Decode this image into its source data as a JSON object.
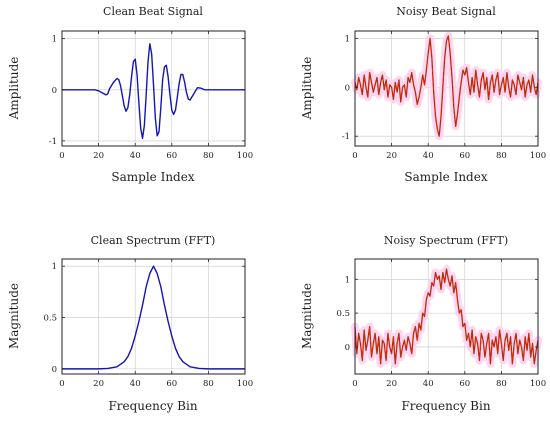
{
  "chart_data": [
    {
      "id": "clean-beat",
      "type": "line",
      "title": "Clean Beat Signal",
      "xlabel": "Sample Index",
      "ylabel": "Amplitude",
      "xlim": [
        0,
        100
      ],
      "ylim": [
        -1.1,
        1.15
      ],
      "xticks": [
        0,
        20,
        40,
        60,
        80,
        100
      ],
      "yticks": [
        -1,
        0,
        1
      ],
      "grid": true,
      "colors": {
        "line": "#1515b5",
        "halo": "#ffffff"
      },
      "series": [
        {
          "x": [
            0,
            5,
            10,
            15,
            18,
            20,
            22,
            24,
            25,
            26,
            28,
            30,
            31,
            32,
            33,
            34,
            35,
            36,
            37,
            38,
            39,
            40,
            41,
            42,
            43,
            44,
            45,
            46,
            47,
            48,
            49,
            50,
            51,
            52,
            53,
            54,
            55,
            56,
            57,
            58,
            59,
            60,
            61,
            62,
            63,
            64,
            65,
            66,
            67,
            68,
            69,
            70,
            72,
            74,
            76,
            78,
            80,
            85,
            90,
            95,
            100
          ],
          "values": [
            0,
            0,
            0,
            0,
            0,
            -0.02,
            -0.06,
            -0.1,
            -0.08,
            0.02,
            0.14,
            0.22,
            0.2,
            0.08,
            -0.12,
            -0.32,
            -0.42,
            -0.35,
            -0.1,
            0.25,
            0.55,
            0.6,
            0.3,
            -0.25,
            -0.75,
            -0.95,
            -0.7,
            -0.1,
            0.55,
            0.9,
            0.7,
            0.1,
            -0.55,
            -0.9,
            -0.82,
            -0.35,
            0.2,
            0.45,
            0.48,
            0.25,
            -0.1,
            -0.4,
            -0.48,
            -0.4,
            -0.15,
            0.12,
            0.3,
            0.3,
            0.15,
            -0.05,
            -0.18,
            -0.2,
            -0.08,
            0.04,
            0.03,
            0,
            0,
            0,
            0,
            0,
            0
          ]
        }
      ]
    },
    {
      "id": "noisy-beat",
      "type": "line",
      "title": "Noisy Beat Signal",
      "xlabel": "Sample Index",
      "ylabel": "Amplitude",
      "xlim": [
        0,
        100
      ],
      "ylim": [
        -1.2,
        1.15
      ],
      "xticks": [
        0,
        20,
        40,
        60,
        80,
        100
      ],
      "yticks": [
        -1,
        0,
        1
      ],
      "grid": true,
      "colors": {
        "line_a": "#8a5a00",
        "line_b": "#e01010",
        "halo": "#ffd6f2"
      },
      "series": [
        {
          "x": [
            0,
            1,
            2,
            3,
            4,
            5,
            6,
            7,
            8,
            9,
            10,
            11,
            12,
            13,
            14,
            15,
            16,
            17,
            18,
            19,
            20,
            21,
            22,
            23,
            24,
            25,
            26,
            27,
            28,
            29,
            30,
            31,
            32,
            33,
            34,
            35,
            36,
            37,
            38,
            39,
            40,
            41,
            42,
            43,
            44,
            45,
            46,
            47,
            48,
            49,
            50,
            51,
            52,
            53,
            54,
            55,
            56,
            57,
            58,
            59,
            60,
            61,
            62,
            63,
            64,
            65,
            66,
            67,
            68,
            69,
            70,
            71,
            72,
            73,
            74,
            75,
            76,
            77,
            78,
            79,
            80,
            81,
            82,
            83,
            84,
            85,
            86,
            87,
            88,
            89,
            90,
            91,
            92,
            93,
            94,
            95,
            96,
            97,
            98,
            99,
            100
          ],
          "values": [
            0.1,
            -0.05,
            0.2,
            0.05,
            -0.15,
            0.25,
            0.0,
            -0.2,
            0.3,
            0.1,
            -0.1,
            0.05,
            0.2,
            -0.15,
            0.1,
            0.25,
            -0.05,
            0.15,
            -0.2,
            0.05,
            0.0,
            -0.25,
            0.1,
            -0.1,
            0.15,
            -0.3,
            0.0,
            0.05,
            -0.2,
            0.2,
            0.1,
            0.3,
            0.05,
            -0.1,
            -0.35,
            -0.2,
            0.0,
            0.25,
            0.05,
            0.35,
            0.7,
            1.0,
            0.6,
            -0.1,
            -0.6,
            -0.85,
            -1.0,
            -0.6,
            0.0,
            0.6,
            0.95,
            1.05,
            0.7,
            0.2,
            -0.4,
            -0.8,
            -0.55,
            -0.2,
            0.1,
            0.35,
            0.25,
            0.4,
            0.1,
            -0.15,
            0.2,
            -0.1,
            0.35,
            0.05,
            -0.2,
            0.15,
            0.3,
            -0.05,
            0.2,
            -0.25,
            0.1,
            0.25,
            -0.1,
            0.15,
            0.3,
            -0.15,
            0.05,
            0.2,
            -0.1,
            0.3,
            0.0,
            -0.2,
            0.15,
            0.05,
            -0.15,
            0.25,
            0.1,
            -0.05,
            0.2,
            -0.2,
            0.05,
            0.15,
            -0.1,
            0.25,
            0.0,
            -0.15,
            0.1
          ]
        }
      ]
    },
    {
      "id": "clean-spectrum",
      "type": "line",
      "title": "Clean Spectrum (FFT)",
      "xlabel": "Frequency Bin",
      "ylabel": "Magnitude",
      "xlim": [
        0,
        100
      ],
      "ylim": [
        -0.05,
        1.07
      ],
      "xticks": [
        0,
        20,
        40,
        60,
        80,
        100
      ],
      "yticks": [
        0,
        0.5,
        1
      ],
      "grid": true,
      "colors": {
        "line": "#1515b5",
        "halo": "#ffffff"
      },
      "series": [
        {
          "x": [
            0,
            10,
            20,
            25,
            30,
            34,
            36,
            38,
            40,
            42,
            44,
            46,
            48,
            50,
            52,
            54,
            56,
            58,
            60,
            62,
            64,
            66,
            70,
            75,
            80,
            90,
            100
          ],
          "values": [
            0,
            0,
            0,
            0.004,
            0.02,
            0.07,
            0.12,
            0.2,
            0.32,
            0.46,
            0.62,
            0.8,
            0.93,
            1.0,
            0.93,
            0.8,
            0.62,
            0.46,
            0.32,
            0.2,
            0.12,
            0.07,
            0.02,
            0.004,
            0,
            0,
            0
          ]
        }
      ]
    },
    {
      "id": "noisy-spectrum",
      "type": "line",
      "title": "Noisy Spectrum (FFT)",
      "xlabel": "Frequency Bin",
      "ylabel": "Magnitude",
      "xlim": [
        0,
        100
      ],
      "ylim": [
        -0.4,
        1.3
      ],
      "xticks": [
        0,
        20,
        40,
        60,
        80,
        100
      ],
      "yticks": [
        0,
        0.5,
        1
      ],
      "grid": true,
      "colors": {
        "line_a": "#8a5a00",
        "line_b": "#e01010",
        "halo": "#ffd6f2"
      },
      "series": [
        {
          "x": [
            0,
            1,
            2,
            3,
            4,
            5,
            6,
            7,
            8,
            9,
            10,
            11,
            12,
            13,
            14,
            15,
            16,
            17,
            18,
            19,
            20,
            21,
            22,
            23,
            24,
            25,
            26,
            27,
            28,
            29,
            30,
            31,
            32,
            33,
            34,
            35,
            36,
            37,
            38,
            39,
            40,
            41,
            42,
            43,
            44,
            45,
            46,
            47,
            48,
            49,
            50,
            51,
            52,
            53,
            54,
            55,
            56,
            57,
            58,
            59,
            60,
            61,
            62,
            63,
            64,
            65,
            66,
            67,
            68,
            69,
            70,
            71,
            72,
            73,
            74,
            75,
            76,
            77,
            78,
            79,
            80,
            81,
            82,
            83,
            84,
            85,
            86,
            87,
            88,
            89,
            90,
            91,
            92,
            93,
            94,
            95,
            96,
            97,
            98,
            99,
            100
          ],
          "values": [
            0.3,
            -0.1,
            0.2,
            0.05,
            -0.2,
            0.25,
            -0.05,
            0.1,
            0.3,
            -0.15,
            0.05,
            0.2,
            -0.1,
            0.15,
            -0.25,
            0.1,
            0.05,
            -0.2,
            0.2,
            0.0,
            -0.1,
            0.15,
            -0.25,
            0.05,
            0.2,
            -0.15,
            0.0,
            0.1,
            -0.05,
            0.15,
            0.05,
            -0.1,
            0.2,
            0.3,
            0.1,
            0.35,
            0.25,
            0.5,
            0.45,
            0.7,
            0.8,
            0.75,
            0.95,
            0.9,
            1.1,
            1.0,
            1.05,
            0.85,
            1.1,
            0.95,
            1.15,
            1.0,
            0.9,
            1.05,
            0.8,
            0.95,
            0.7,
            0.5,
            0.55,
            0.3,
            0.35,
            0.1,
            0.2,
            0.0,
            0.25,
            -0.1,
            0.15,
            0.05,
            -0.2,
            0.2,
            0.1,
            -0.15,
            0.05,
            0.2,
            -0.25,
            0.1,
            0.0,
            0.15,
            -0.1,
            0.25,
            0.05,
            -0.2,
            0.1,
            0.2,
            -0.05,
            0.15,
            -0.25,
            0.05,
            0.2,
            -0.1,
            0.1,
            0.0,
            -0.2,
            0.15,
            -0.05,
            0.2,
            -0.15,
            0.05,
            -0.25,
            -0.05,
            0.1
          ]
        }
      ]
    }
  ]
}
